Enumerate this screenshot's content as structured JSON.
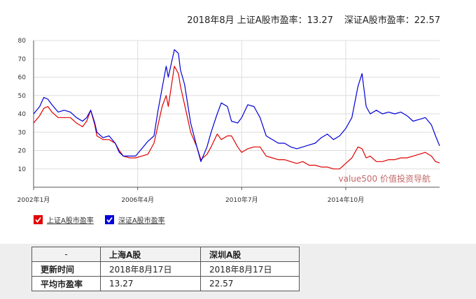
{
  "headline": {
    "sh": "2018年8月 上证A股市盈率：13.27",
    "sz": "深证A股市盈率：22.57"
  },
  "chart_data": {
    "type": "line",
    "y_ticks": [
      10,
      20,
      30,
      40,
      50,
      60,
      70,
      80
    ],
    "ylim": [
      0,
      80
    ],
    "x_ticks": [
      "2002年1月",
      "2006年4月",
      "2010年7月",
      "2014年10月"
    ],
    "x_range": [
      "2002-01",
      "2018-08"
    ],
    "grid": true,
    "watermark": "value500 价值投资导航",
    "series": [
      {
        "name": "上证A股市盈率",
        "color": "#e00000",
        "points": [
          [
            "2002-01",
            35
          ],
          [
            "2002-04",
            39
          ],
          [
            "2002-06",
            43
          ],
          [
            "2002-08",
            44
          ],
          [
            "2002-10",
            41
          ],
          [
            "2003-01",
            38
          ],
          [
            "2003-04",
            38
          ],
          [
            "2003-07",
            38
          ],
          [
            "2003-10",
            35
          ],
          [
            "2004-01",
            33
          ],
          [
            "2004-03",
            36
          ],
          [
            "2004-05",
            42
          ],
          [
            "2004-07",
            34
          ],
          [
            "2004-08",
            28
          ],
          [
            "2004-11",
            26
          ],
          [
            "2005-02",
            26
          ],
          [
            "2005-05",
            24
          ],
          [
            "2005-07",
            20
          ],
          [
            "2005-09",
            17
          ],
          [
            "2005-12",
            16
          ],
          [
            "2006-03",
            16
          ],
          [
            "2006-06",
            17
          ],
          [
            "2006-09",
            18
          ],
          [
            "2006-12",
            24
          ],
          [
            "2007-02",
            34
          ],
          [
            "2007-04",
            44
          ],
          [
            "2007-06",
            50
          ],
          [
            "2007-07",
            44
          ],
          [
            "2007-10",
            66
          ],
          [
            "2007-12",
            62
          ],
          [
            "2008-01",
            55
          ],
          [
            "2008-03",
            45
          ],
          [
            "2008-06",
            30
          ],
          [
            "2008-09",
            22
          ],
          [
            "2008-11",
            15
          ],
          [
            "2009-02",
            18
          ],
          [
            "2009-04",
            22
          ],
          [
            "2009-07",
            29
          ],
          [
            "2009-09",
            26
          ],
          [
            "2009-12",
            28
          ],
          [
            "2010-02",
            28
          ],
          [
            "2010-05",
            22
          ],
          [
            "2010-07",
            19
          ],
          [
            "2010-10",
            21
          ],
          [
            "2011-01",
            22
          ],
          [
            "2011-04",
            22
          ],
          [
            "2011-07",
            17
          ],
          [
            "2011-10",
            16
          ],
          [
            "2012-01",
            15
          ],
          [
            "2012-04",
            15
          ],
          [
            "2012-07",
            14
          ],
          [
            "2012-10",
            13
          ],
          [
            "2013-01",
            14
          ],
          [
            "2013-04",
            12
          ],
          [
            "2013-07",
            12
          ],
          [
            "2013-10",
            11
          ],
          [
            "2014-01",
            11
          ],
          [
            "2014-04",
            10
          ],
          [
            "2014-07",
            10
          ],
          [
            "2014-10",
            13
          ],
          [
            "2015-01",
            16
          ],
          [
            "2015-04",
            22
          ],
          [
            "2015-06",
            21
          ],
          [
            "2015-08",
            16
          ],
          [
            "2015-10",
            17
          ],
          [
            "2016-01",
            14
          ],
          [
            "2016-04",
            14
          ],
          [
            "2016-07",
            15
          ],
          [
            "2016-10",
            15
          ],
          [
            "2017-01",
            16
          ],
          [
            "2017-04",
            16
          ],
          [
            "2017-07",
            17
          ],
          [
            "2017-10",
            18
          ],
          [
            "2018-01",
            19
          ],
          [
            "2018-04",
            17
          ],
          [
            "2018-06",
            14
          ],
          [
            "2018-08",
            13.27
          ]
        ]
      },
      {
        "name": "深证A股市盈率",
        "color": "#0000d8",
        "points": [
          [
            "2002-01",
            40
          ],
          [
            "2002-04",
            44
          ],
          [
            "2002-06",
            49
          ],
          [
            "2002-08",
            48
          ],
          [
            "2002-10",
            45
          ],
          [
            "2003-01",
            41
          ],
          [
            "2003-04",
            42
          ],
          [
            "2003-07",
            41
          ],
          [
            "2003-10",
            38
          ],
          [
            "2004-01",
            36
          ],
          [
            "2004-03",
            38
          ],
          [
            "2004-05",
            42
          ],
          [
            "2004-07",
            35
          ],
          [
            "2004-08",
            30
          ],
          [
            "2004-11",
            27
          ],
          [
            "2005-02",
            28
          ],
          [
            "2005-05",
            24
          ],
          [
            "2005-07",
            19
          ],
          [
            "2005-09",
            17
          ],
          [
            "2005-12",
            17
          ],
          [
            "2006-03",
            17
          ],
          [
            "2006-06",
            21
          ],
          [
            "2006-09",
            25
          ],
          [
            "2006-12",
            28
          ],
          [
            "2007-02",
            42
          ],
          [
            "2007-04",
            54
          ],
          [
            "2007-06",
            66
          ],
          [
            "2007-07",
            60
          ],
          [
            "2007-10",
            75
          ],
          [
            "2007-12",
            73
          ],
          [
            "2008-01",
            64
          ],
          [
            "2008-03",
            56
          ],
          [
            "2008-06",
            35
          ],
          [
            "2008-09",
            22
          ],
          [
            "2008-11",
            14
          ],
          [
            "2009-02",
            22
          ],
          [
            "2009-04",
            30
          ],
          [
            "2009-07",
            40
          ],
          [
            "2009-09",
            46
          ],
          [
            "2009-12",
            44
          ],
          [
            "2010-02",
            36
          ],
          [
            "2010-05",
            35
          ],
          [
            "2010-07",
            38
          ],
          [
            "2010-10",
            45
          ],
          [
            "2011-01",
            44
          ],
          [
            "2011-04",
            38
          ],
          [
            "2011-07",
            28
          ],
          [
            "2011-10",
            26
          ],
          [
            "2012-01",
            24
          ],
          [
            "2012-04",
            24
          ],
          [
            "2012-07",
            22
          ],
          [
            "2012-10",
            21
          ],
          [
            "2013-01",
            22
          ],
          [
            "2013-04",
            23
          ],
          [
            "2013-07",
            24
          ],
          [
            "2013-10",
            27
          ],
          [
            "2014-01",
            29
          ],
          [
            "2014-04",
            26
          ],
          [
            "2014-07",
            28
          ],
          [
            "2014-10",
            32
          ],
          [
            "2015-01",
            38
          ],
          [
            "2015-04",
            55
          ],
          [
            "2015-06",
            62
          ],
          [
            "2015-08",
            44
          ],
          [
            "2015-10",
            40
          ],
          [
            "2016-01",
            42
          ],
          [
            "2016-04",
            40
          ],
          [
            "2016-07",
            41
          ],
          [
            "2016-10",
            40
          ],
          [
            "2017-01",
            41
          ],
          [
            "2017-04",
            39
          ],
          [
            "2017-07",
            36
          ],
          [
            "2017-10",
            37
          ],
          [
            "2018-01",
            38
          ],
          [
            "2018-04",
            34
          ],
          [
            "2018-06",
            28
          ],
          [
            "2018-08",
            22.57
          ]
        ]
      }
    ]
  },
  "legend": [
    {
      "label": "上证A股市盈率"
    },
    {
      "label": "深证A股市盈率"
    }
  ],
  "table": {
    "headers": [
      "-",
      "上海A股",
      "深圳A股"
    ],
    "rows": [
      [
        "更新时间",
        "2018年8月17日",
        "2018年8月17日"
      ],
      [
        "平均市盈率",
        "13.27",
        "22.57"
      ]
    ]
  }
}
